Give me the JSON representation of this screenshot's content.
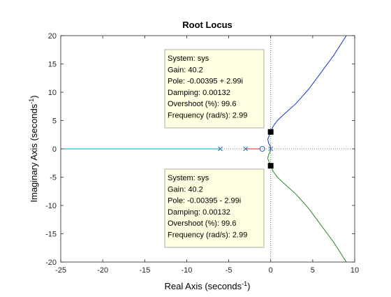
{
  "chart_data": {
    "type": "line",
    "title": "Root Locus",
    "xlabel": {
      "main": "Real Axis (seconds",
      "sup": "-1",
      "end": ")"
    },
    "ylabel": {
      "main": "Imaginary Axis (seconds",
      "sup": "-1",
      "end": ")"
    },
    "xlim": [
      -25,
      10
    ],
    "ylim": [
      -20,
      20
    ],
    "xticks": [
      -25,
      -20,
      -15,
      -10,
      -5,
      0,
      5,
      10
    ],
    "yticks": [
      -20,
      -15,
      -10,
      -5,
      0,
      5,
      10,
      15,
      20
    ],
    "grid": false,
    "colors": {
      "cyan": "#00aabb",
      "red": "#dd2222",
      "blue": "#1133cc",
      "green": "#228822",
      "pole_marker": "#2a6fb5",
      "datatip_bg": "#ffffe1"
    },
    "series": [
      {
        "color_key": "cyan",
        "x": [
          -25,
          -6
        ],
        "y": [
          0,
          0
        ]
      },
      {
        "color_key": "red",
        "x": [
          -3,
          -1.2
        ],
        "y": [
          0,
          0
        ]
      },
      {
        "color_key": "blue",
        "x": [
          0,
          -0.05,
          -0.25,
          -0.35,
          -0.2,
          0,
          0.3,
          0.8,
          1.5,
          3,
          4.5,
          6,
          7.5,
          9
        ],
        "y": [
          0,
          0.5,
          1.0,
          1.7,
          2.3,
          2.99,
          4,
          5,
          6,
          8,
          10.5,
          13.5,
          16.5,
          20
        ]
      },
      {
        "color_key": "green",
        "x": [
          0,
          -0.05,
          -0.25,
          -0.35,
          -0.2,
          0,
          0.3,
          0.8,
          1.5,
          3,
          4.5,
          6,
          7.5,
          9
        ],
        "y": [
          0,
          -0.5,
          -1.0,
          -1.7,
          -2.3,
          -2.99,
          -4,
          -5,
          -6,
          -8,
          -10.5,
          -13.5,
          -16.5,
          -20
        ]
      }
    ],
    "poles": [
      {
        "x": -6,
        "y": 0
      },
      {
        "x": -3,
        "y": 0
      },
      {
        "x": 0,
        "y": 0
      }
    ],
    "zeros": [
      {
        "x": -1,
        "y": 0
      }
    ],
    "selected_points": [
      {
        "x": -0.00395,
        "y": 2.99
      },
      {
        "x": -0.00395,
        "y": -2.99
      }
    ],
    "datatips": [
      {
        "lines": [
          "System: sys",
          "Gain: 40.2",
          "Pole: -0.00395 + 2.99i",
          "Damping: 0.00132",
          "Overshoot (%): 99.6",
          "Frequency (rad/s): 2.99"
        ]
      },
      {
        "lines": [
          "System: sys",
          "Gain: 40.2",
          "Pole: -0.00395 - 2.99i",
          "Damping: 0.00132",
          "Overshoot (%): 99.6",
          "Frequency (rad/s): 2.99"
        ]
      }
    ]
  }
}
